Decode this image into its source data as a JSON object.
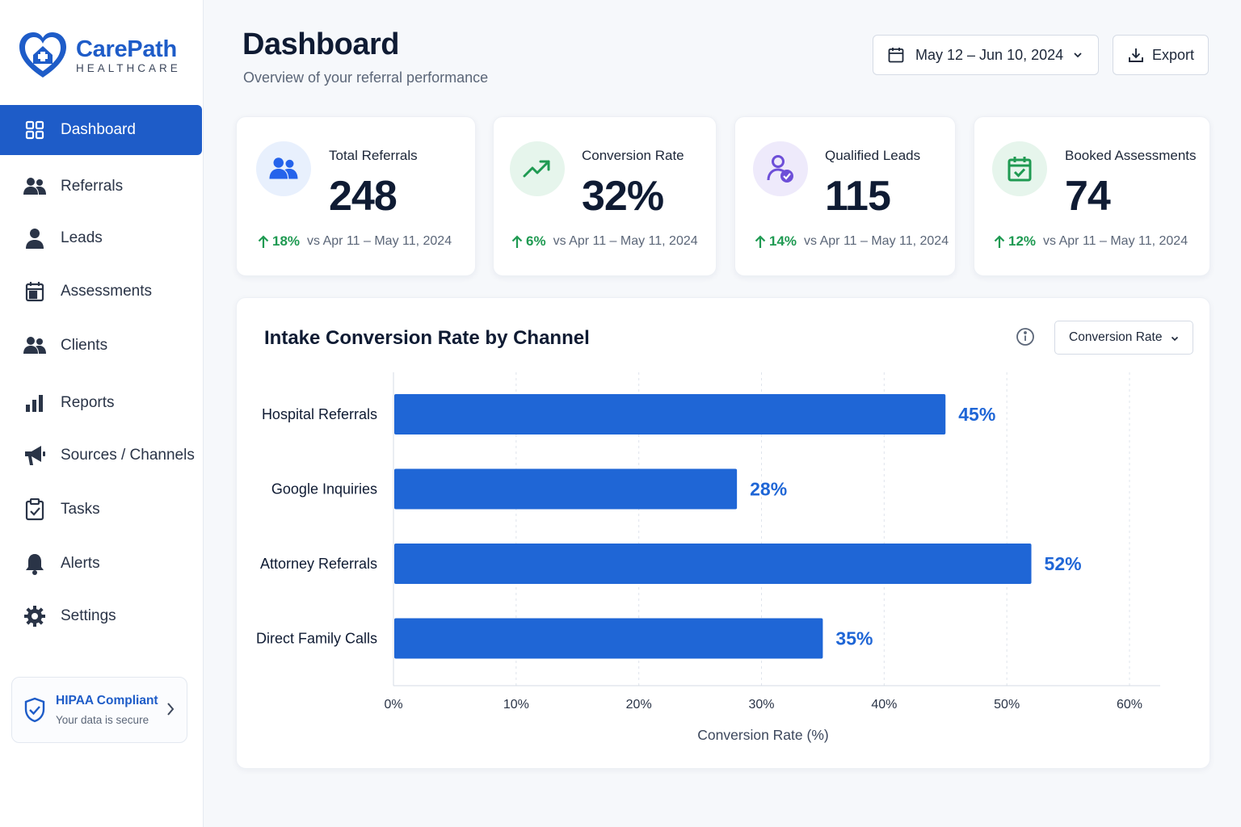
{
  "brand": {
    "name": "CarePath",
    "sub": "HEALTHCARE",
    "color": "#1e5cc8"
  },
  "sidebar": {
    "items": [
      {
        "label": "Dashboard",
        "icon": "grid-icon",
        "active": true
      },
      {
        "label": "Referrals",
        "icon": "users-icon"
      },
      {
        "label": "Leads",
        "icon": "user-icon"
      },
      {
        "label": "Assessments",
        "icon": "calendar-icon"
      },
      {
        "label": "Clients",
        "icon": "users-icon"
      },
      {
        "label": "Reports",
        "icon": "bar-chart-icon"
      },
      {
        "label": "Sources / Channels",
        "icon": "megaphone-icon"
      },
      {
        "label": "Tasks",
        "icon": "clipboard-check-icon"
      },
      {
        "label": "Alerts",
        "icon": "bell-icon"
      },
      {
        "label": "Settings",
        "icon": "gear-icon"
      }
    ],
    "compliance": {
      "title": "HIPAA Compliant",
      "subtitle": "Your data is secure",
      "icon": "shield-check-icon"
    }
  },
  "header": {
    "title": "Dashboard",
    "subtitle": "Overview of your referral performance",
    "date_range": "May 12 – Jun 10, 2024",
    "export_label": "Export"
  },
  "stats": [
    {
      "label": "Total Referrals",
      "value": "248",
      "delta": "18%",
      "compare": "vs Apr 11 – May 11, 2024",
      "icon": "users-icon",
      "color": "#2563eb",
      "bg": "#e8f0fd"
    },
    {
      "label": "Conversion Rate",
      "value": "32%",
      "delta": "6%",
      "compare": "vs Apr 11 – May 11, 2024",
      "icon": "trend-up-icon",
      "color": "#1f9a52",
      "bg": "#e6f5ec"
    },
    {
      "label": "Qualified Leads",
      "value": "115",
      "delta": "14%",
      "compare": "vs Apr 11 – May 11, 2024",
      "icon": "user-check-icon",
      "color": "#6d4fd8",
      "bg": "#eeeafb"
    },
    {
      "label": "Booked Assessments",
      "value": "74",
      "delta": "12%",
      "compare": "vs Apr 11 – May 11, 2024",
      "icon": "calendar-check-icon",
      "color": "#1f9a52",
      "bg": "#e6f5ec"
    }
  ],
  "panel": {
    "title": "Intake Conversion Rate by Channel",
    "metric_select": "Conversion Rate"
  },
  "chart_data": {
    "type": "bar",
    "orientation": "horizontal",
    "categories": [
      "Hospital Referrals",
      "Google Inquiries",
      "Attorney Referrals",
      "Direct Family Calls"
    ],
    "values": [
      45,
      28,
      52,
      35
    ],
    "value_labels": [
      "45%",
      "28%",
      "52%",
      "35%"
    ],
    "xlabel": "Conversion Rate (%)",
    "ylabel": "",
    "xlim": [
      0,
      60
    ],
    "ticks": [
      "0%",
      "10%",
      "20%",
      "30%",
      "40%",
      "50%",
      "60%"
    ],
    "grid": "vertical dashed",
    "bar_color": "#1f66d6"
  }
}
